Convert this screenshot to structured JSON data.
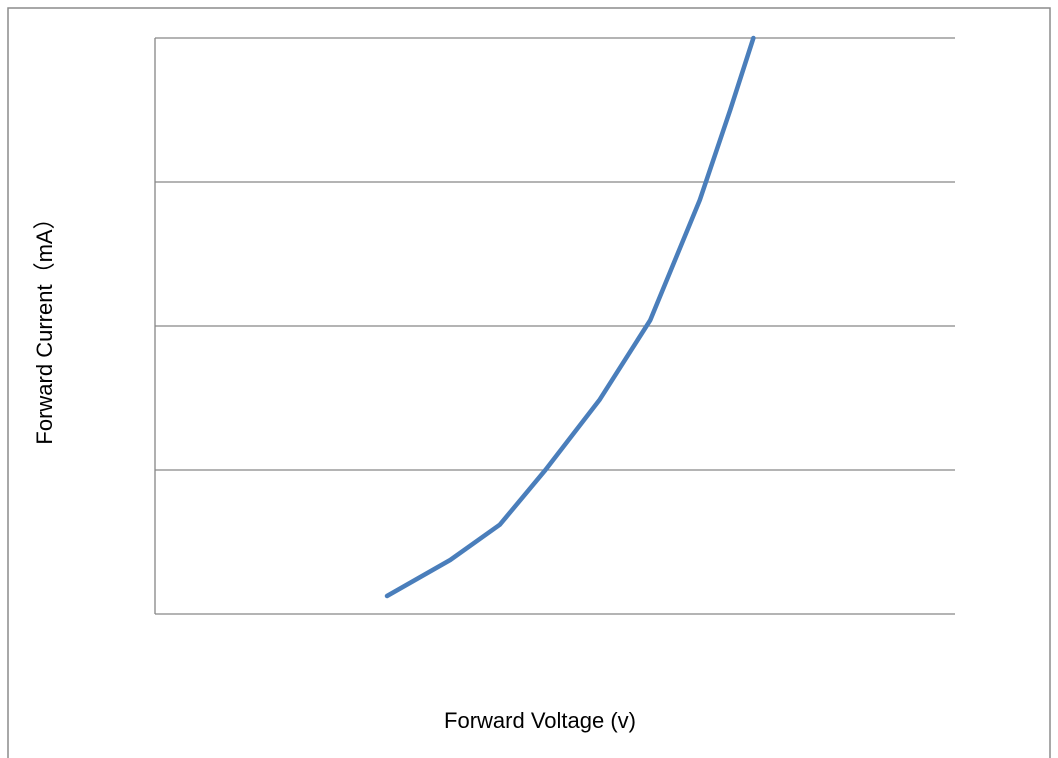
{
  "chart_data": {
    "type": "line",
    "x_label": "Forward Voltage (v)",
    "y_label": "Forward Current（mA）",
    "x": [
      2.9,
      3.69,
      4.31,
      4.88,
      5.56,
      6.19,
      6.81,
      7.19,
      7.48
    ],
    "series": [
      {
        "color": "#4a7ebb",
        "values": [
          0.125,
          0.375,
          0.62,
          1.0,
          1.49,
          2.04,
          2.875,
          3.5,
          4.0
        ]
      }
    ],
    "xlim": [
      0,
      10
    ],
    "ylim": [
      0,
      4
    ],
    "yticks": [
      0,
      1,
      2,
      3,
      4
    ],
    "grid": true
  }
}
